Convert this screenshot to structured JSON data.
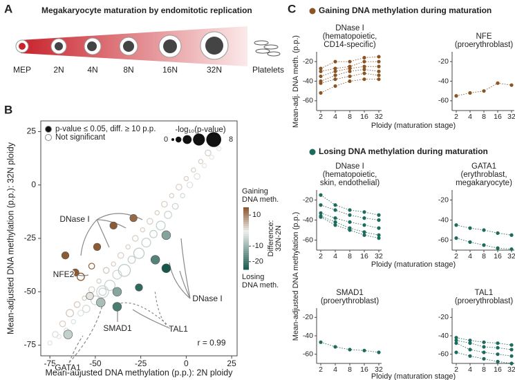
{
  "panels": [
    "A",
    "B",
    "C"
  ],
  "diagram": {
    "title": "Megakaryocyte maturation by endomitotic replication",
    "labels": [
      "MEP",
      "2N",
      "4N",
      "8N",
      "16N",
      "32N",
      "Platelets"
    ]
  },
  "panel_c": {
    "gaining_heading": "Gaining DNA methylation during maturation",
    "losing_heading": "Losing DNA methylation during maturation",
    "ylabel_gaining": "Mean-adj. DNA meth. (p.p.)",
    "ylabel_losing": "Mean-adjusted DNA methylation (p.p.)",
    "xlabel": "Ploidy (maturation stage)"
  },
  "chart_data": [
    {
      "type": "scatter",
      "xlabel": "Mean-adjusted DNA methylation (p.p.): 2N ploidy",
      "ylabel": "Mean-adjusted DNA methylation (p.p.): 32N ploidy",
      "xlim": [
        -80,
        28
      ],
      "ylim": [
        -80,
        30
      ],
      "xticks": [
        -75,
        -50,
        -25,
        0,
        25
      ],
      "yticks": [
        -75,
        -50,
        -25,
        0,
        25
      ],
      "series": [
        {
          "name": "p-value ≤ 0.05, diff. ≥ 10 p.p.",
          "filled": true,
          "x": [
            -29,
            -40,
            -49,
            -66.5,
            -61,
            -11,
            -17,
            -11,
            -26,
            -38,
            -47,
            -38,
            -53,
            -65
          ],
          "y": [
            -15.5,
            -19,
            -29,
            -33,
            -41,
            -23.5,
            -35,
            -39,
            -48,
            -50,
            -55,
            -57,
            -52,
            -70
          ],
          "size": [
            3,
            3,
            3,
            3,
            3,
            4,
            4,
            4,
            3,
            4,
            4,
            4,
            3,
            4
          ]
        },
        {
          "name": "Not significant",
          "filled": false,
          "x": [
            -75,
            -72,
            -70,
            -68,
            -66,
            -64,
            -62,
            -60,
            -58,
            -56,
            -55,
            -52,
            -50,
            -48,
            -46,
            -44,
            -42,
            -40,
            -38,
            -36,
            -34,
            -32,
            -30,
            -28,
            -26,
            -24,
            -22,
            -20,
            -18,
            -16,
            -14,
            -12,
            -10,
            -8,
            -6,
            -4,
            -2,
            0,
            2,
            4,
            6,
            8,
            10,
            12,
            14,
            16,
            18,
            -58,
            -52,
            -46
          ],
          "y": [
            -74,
            -70,
            -71,
            -65,
            -68,
            -60,
            -64,
            -56,
            -60,
            -53,
            -58,
            -49,
            -54,
            -45,
            -50,
            -40,
            -47,
            -37,
            -42,
            -33,
            -40,
            -29,
            -35,
            -25,
            -32,
            -21,
            -27,
            -17,
            -23,
            -13,
            -19,
            -9,
            -14,
            -5,
            -10,
            -1,
            -5,
            3,
            0,
            7,
            4,
            11,
            9,
            15,
            13,
            19,
            17,
            -43,
            -38,
            -50
          ],
          "size": [
            1,
            2,
            1,
            2,
            1,
            3,
            1,
            2,
            2,
            1,
            3,
            2,
            4,
            1,
            3,
            2,
            5,
            1,
            4,
            2,
            6,
            1,
            3,
            2,
            5,
            1,
            4,
            2,
            3,
            1,
            4,
            2,
            3,
            1,
            2,
            2,
            1,
            1,
            2,
            1,
            2,
            1,
            1,
            2,
            1,
            1,
            1,
            3,
            2,
            6
          ]
        }
      ],
      "size_legend": {
        "title": "-log₁₀(p-value)",
        "min": 0,
        "max": 8
      },
      "colorbar": {
        "title": [
          "Difference:",
          "32N-2N"
        ],
        "top_label": [
          "Gaining",
          "DNA meth."
        ],
        "bottom_label": [
          "Losing",
          "DNA meth."
        ],
        "lim": [
          -25,
          15
        ],
        "ticks": [
          10,
          -10,
          -20
        ],
        "colors": [
          "#17574a",
          "#eeefed",
          "#8c5a33"
        ]
      },
      "annotations": [
        "DNase I",
        "NFE2",
        "DNase I",
        "TAL1",
        "SMAD1",
        "GATA1",
        "r = 0.99"
      ]
    },
    {
      "type": "line",
      "title": [
        "DNase I",
        "(hematopoietic,",
        "CD14-specific)"
      ],
      "color": "#8a5424",
      "categories": [
        "2",
        "4",
        "8",
        "16",
        "32"
      ],
      "ylim": [
        -70,
        -10
      ],
      "yticks": [
        -20,
        -40,
        -60
      ],
      "series": [
        {
          "values": [
            -27,
            -20,
            -20,
            -16,
            -15
          ]
        },
        {
          "values": [
            -30,
            -27,
            -25,
            -20,
            -20
          ]
        },
        {
          "values": [
            -35,
            -30,
            -27,
            -25,
            -25
          ]
        },
        {
          "values": [
            -40,
            -34,
            -30,
            -28,
            -30
          ]
        },
        {
          "values": [
            -42,
            -38,
            -35,
            -32,
            -34
          ]
        },
        {
          "values": [
            -52,
            -45,
            -40,
            -38,
            -38
          ]
        }
      ]
    },
    {
      "type": "line",
      "title": [
        "NFE",
        "(proerythroblast)"
      ],
      "color": "#8a5424",
      "categories": [
        "2",
        "4",
        "8",
        "16",
        "32"
      ],
      "ylim": [
        -70,
        -10
      ],
      "yticks": [
        -20,
        -40,
        -60
      ],
      "series": [
        {
          "values": [
            -55,
            -52,
            -50,
            -42,
            -44
          ]
        }
      ]
    },
    {
      "type": "line",
      "title": [
        "DNase I",
        "(hematopoietic,",
        "skin, endothelial)"
      ],
      "color": "#1d6b5c",
      "categories": [
        "2",
        "4",
        "8",
        "16",
        "32"
      ],
      "ylim": [
        -70,
        -10
      ],
      "yticks": [
        -20,
        -40,
        -60
      ],
      "series": [
        {
          "values": [
            -15,
            -25,
            -30,
            -32,
            -35
          ]
        },
        {
          "values": [
            -25,
            -30,
            -35,
            -38,
            -40
          ]
        },
        {
          "values": [
            -33,
            -38,
            -42,
            -45,
            -48
          ]
        },
        {
          "values": [
            -36,
            -42,
            -48,
            -52,
            -55
          ]
        },
        {
          "values": [
            -37,
            -45,
            -50,
            -55,
            -58
          ]
        }
      ]
    },
    {
      "type": "line",
      "title": [
        "GATA1",
        "(erythroblast,",
        "megakaryocyte)"
      ],
      "color": "#1d6b5c",
      "categories": [
        "2",
        "4",
        "8",
        "16",
        "32"
      ],
      "ylim": [
        -70,
        -10
      ],
      "yticks": [
        -20,
        -40,
        -60
      ],
      "series": [
        {
          "values": [
            -45,
            -48,
            -50,
            -53,
            -55
          ]
        },
        {
          "values": [
            -58,
            -62,
            -65,
            -68,
            -69
          ]
        }
      ]
    },
    {
      "type": "line",
      "title": [
        "SMAD1",
        "(proerythroblast)"
      ],
      "color": "#1d6b5c",
      "categories": [
        "2",
        "4",
        "8",
        "16",
        "32"
      ],
      "ylim": [
        -70,
        -10
      ],
      "yticks": [
        -20,
        -40,
        -60
      ],
      "series": [
        {
          "values": [
            -47,
            -52,
            -55,
            -56,
            -58
          ]
        }
      ]
    },
    {
      "type": "line",
      "title": [
        "TAL1",
        "(proerythroblast)"
      ],
      "color": "#1d6b5c",
      "categories": [
        "2",
        "4",
        "8",
        "16",
        "32"
      ],
      "ylim": [
        -70,
        -10
      ],
      "yticks": [
        -20,
        -40,
        -60
      ],
      "series": [
        {
          "values": [
            -42,
            -45,
            -47,
            -48,
            -50
          ]
        },
        {
          "values": [
            -45,
            -48,
            -52,
            -53,
            -55
          ]
        },
        {
          "values": [
            -48,
            -55,
            -58,
            -60,
            -62
          ]
        },
        {
          "values": [
            -58,
            -62,
            -65,
            -68,
            -70
          ]
        }
      ]
    }
  ]
}
